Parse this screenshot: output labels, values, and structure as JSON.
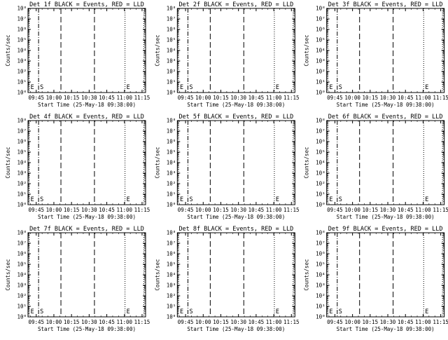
{
  "figure": {
    "background": "#ffffff",
    "foreground": "#000000"
  },
  "chart_data": [
    {
      "type": "line",
      "title": "Det 1f BLACK = Events, RED = LLD",
      "xlabel": "Start Time (25-May-18 09:38:00)",
      "ylabel": "Counts/sec",
      "y_scale": "log",
      "ylim": [
        1,
        100000000
      ],
      "yticks": [
        "10⁰",
        "10¹",
        "10²",
        "10³",
        "10⁴",
        "10⁵",
        "10⁶",
        "10⁷",
        "10⁸"
      ],
      "xticks": [
        "09:45",
        "10:00",
        "10:15",
        "10:30",
        "10:45",
        "11:00",
        "11:15"
      ],
      "xlim_minutes": [
        0,
        100
      ],
      "series": [],
      "annotations": [
        {
          "label": "E",
          "x_min": 1,
          "style": "dotted"
        },
        {
          "label": "S",
          "x_min": 9,
          "style": "dash-dot"
        },
        {
          "label": "",
          "x_min": 28,
          "style": "dashed"
        },
        {
          "label": "",
          "x_min": 56.5,
          "style": "dashed"
        },
        {
          "label": "E",
          "x_min": 82.5,
          "style": "dotted"
        },
        {
          "label": "",
          "x_min": 98.5,
          "style": "dotted"
        }
      ],
      "grid": false
    },
    {
      "type": "line",
      "title": "Det 2f BLACK = Events, RED = LLD",
      "xlabel": "Start Time (25-May-18 09:38:00)",
      "ylabel": "Counts/sec",
      "y_scale": "log",
      "ylim": [
        1,
        100000000
      ],
      "yticks": [
        "10⁰",
        "10¹",
        "10²",
        "10³",
        "10⁴",
        "10⁵",
        "10⁶",
        "10⁷",
        "10⁸"
      ],
      "xticks": [
        "09:45",
        "10:00",
        "10:15",
        "10:30",
        "10:45",
        "11:00",
        "11:15"
      ],
      "xlim_minutes": [
        0,
        100
      ],
      "series": [],
      "annotations": [
        {
          "label": "E",
          "x_min": 1,
          "style": "dotted"
        },
        {
          "label": "S",
          "x_min": 9,
          "style": "dash-dot"
        },
        {
          "label": "",
          "x_min": 28,
          "style": "dashed"
        },
        {
          "label": "",
          "x_min": 56.5,
          "style": "dashed"
        },
        {
          "label": "E",
          "x_min": 82.5,
          "style": "dotted"
        },
        {
          "label": "",
          "x_min": 98.5,
          "style": "dotted"
        }
      ],
      "grid": false
    },
    {
      "type": "line",
      "title": "Det 3f BLACK = Events, RED = LLD",
      "xlabel": "Start Time (25-May-18 09:38:00)",
      "ylabel": "Counts/sec",
      "y_scale": "log",
      "ylim": [
        1,
        100000000
      ],
      "yticks": [
        "10⁰",
        "10¹",
        "10²",
        "10³",
        "10⁴",
        "10⁵",
        "10⁶",
        "10⁷",
        "10⁸"
      ],
      "xticks": [
        "09:45",
        "10:00",
        "10:15",
        "10:30",
        "10:45",
        "11:00",
        "11:15"
      ],
      "xlim_minutes": [
        0,
        100
      ],
      "series": [],
      "annotations": [
        {
          "label": "E",
          "x_min": 1,
          "style": "dotted"
        },
        {
          "label": "S",
          "x_min": 9,
          "style": "dash-dot"
        },
        {
          "label": "",
          "x_min": 28,
          "style": "dashed"
        },
        {
          "label": "",
          "x_min": 56.5,
          "style": "dashed"
        },
        {
          "label": "E",
          "x_min": 82.5,
          "style": "dotted"
        },
        {
          "label": "",
          "x_min": 98.5,
          "style": "dotted"
        }
      ],
      "grid": false
    },
    {
      "type": "line",
      "title": "Det 4f BLACK = Events, RED = LLD",
      "xlabel": "Start Time (25-May-18 09:38:00)",
      "ylabel": "Counts/sec",
      "y_scale": "log",
      "ylim": [
        1,
        100000000
      ],
      "yticks": [
        "10⁰",
        "10¹",
        "10²",
        "10³",
        "10⁴",
        "10⁵",
        "10⁶",
        "10⁷",
        "10⁸"
      ],
      "xticks": [
        "09:45",
        "10:00",
        "10:15",
        "10:30",
        "10:45",
        "11:00",
        "11:15"
      ],
      "xlim_minutes": [
        0,
        100
      ],
      "series": [],
      "annotations": [
        {
          "label": "E",
          "x_min": 1,
          "style": "dotted"
        },
        {
          "label": "S",
          "x_min": 9,
          "style": "dash-dot"
        },
        {
          "label": "",
          "x_min": 28,
          "style": "dashed"
        },
        {
          "label": "",
          "x_min": 56.5,
          "style": "dashed"
        },
        {
          "label": "E",
          "x_min": 82.5,
          "style": "dotted"
        },
        {
          "label": "",
          "x_min": 98.5,
          "style": "dotted"
        }
      ],
      "grid": false
    },
    {
      "type": "line",
      "title": "Det 5f BLACK = Events, RED = LLD",
      "xlabel": "Start Time (25-May-18 09:38:00)",
      "ylabel": "Counts/sec",
      "y_scale": "log",
      "ylim": [
        1,
        100000000
      ],
      "yticks": [
        "10⁰",
        "10¹",
        "10²",
        "10³",
        "10⁴",
        "10⁵",
        "10⁶",
        "10⁷",
        "10⁸"
      ],
      "xticks": [
        "09:45",
        "10:00",
        "10:15",
        "10:30",
        "10:45",
        "11:00",
        "11:15"
      ],
      "xlim_minutes": [
        0,
        100
      ],
      "series": [],
      "annotations": [
        {
          "label": "E",
          "x_min": 1,
          "style": "dotted"
        },
        {
          "label": "S",
          "x_min": 9,
          "style": "dash-dot"
        },
        {
          "label": "",
          "x_min": 28,
          "style": "dashed"
        },
        {
          "label": "",
          "x_min": 56.5,
          "style": "dashed"
        },
        {
          "label": "E",
          "x_min": 82.5,
          "style": "dotted"
        },
        {
          "label": "",
          "x_min": 98.5,
          "style": "dotted"
        }
      ],
      "grid": false
    },
    {
      "type": "line",
      "title": "Det 6f BLACK = Events, RED = LLD",
      "xlabel": "Start Time (25-May-18 09:38:00)",
      "ylabel": "Counts/sec",
      "y_scale": "log",
      "ylim": [
        1,
        100000000
      ],
      "yticks": [
        "10⁰",
        "10¹",
        "10²",
        "10³",
        "10⁴",
        "10⁵",
        "10⁶",
        "10⁷",
        "10⁸"
      ],
      "xticks": [
        "09:45",
        "10:00",
        "10:15",
        "10:30",
        "10:45",
        "11:00",
        "11:15"
      ],
      "xlim_minutes": [
        0,
        100
      ],
      "series": [],
      "annotations": [
        {
          "label": "E",
          "x_min": 1,
          "style": "dotted"
        },
        {
          "label": "S",
          "x_min": 9,
          "style": "dash-dot"
        },
        {
          "label": "",
          "x_min": 28,
          "style": "dashed"
        },
        {
          "label": "",
          "x_min": 56.5,
          "style": "dashed"
        },
        {
          "label": "E",
          "x_min": 82.5,
          "style": "dotted"
        },
        {
          "label": "",
          "x_min": 98.5,
          "style": "dotted"
        }
      ],
      "grid": false
    },
    {
      "type": "line",
      "title": "Det 7f BLACK = Events, RED = LLD",
      "xlabel": "Start Time (25-May-18 09:38:00)",
      "ylabel": "Counts/sec",
      "y_scale": "log",
      "ylim": [
        1,
        100000000
      ],
      "yticks": [
        "10⁰",
        "10¹",
        "10²",
        "10³",
        "10⁴",
        "10⁵",
        "10⁶",
        "10⁷",
        "10⁸"
      ],
      "xticks": [
        "09:45",
        "10:00",
        "10:15",
        "10:30",
        "10:45",
        "11:00",
        "11:15"
      ],
      "xlim_minutes": [
        0,
        100
      ],
      "series": [],
      "annotations": [
        {
          "label": "E",
          "x_min": 1,
          "style": "dotted"
        },
        {
          "label": "S",
          "x_min": 9,
          "style": "dash-dot"
        },
        {
          "label": "",
          "x_min": 28,
          "style": "dashed"
        },
        {
          "label": "",
          "x_min": 56.5,
          "style": "dashed"
        },
        {
          "label": "E",
          "x_min": 82.5,
          "style": "dotted"
        },
        {
          "label": "",
          "x_min": 98.5,
          "style": "dotted"
        }
      ],
      "grid": false
    },
    {
      "type": "line",
      "title": "Det 8f BLACK = Events, RED = LLD",
      "xlabel": "Start Time (25-May-18 09:38:00)",
      "ylabel": "Counts/sec",
      "y_scale": "log",
      "ylim": [
        1,
        100000000
      ],
      "yticks": [
        "10⁰",
        "10¹",
        "10²",
        "10³",
        "10⁴",
        "10⁵",
        "10⁶",
        "10⁷",
        "10⁸"
      ],
      "xticks": [
        "09:45",
        "10:00",
        "10:15",
        "10:30",
        "10:45",
        "11:00",
        "11:15"
      ],
      "xlim_minutes": [
        0,
        100
      ],
      "series": [],
      "annotations": [
        {
          "label": "E",
          "x_min": 1,
          "style": "dotted"
        },
        {
          "label": "S",
          "x_min": 9,
          "style": "dash-dot"
        },
        {
          "label": "",
          "x_min": 28,
          "style": "dashed"
        },
        {
          "label": "",
          "x_min": 56.5,
          "style": "dashed"
        },
        {
          "label": "E",
          "x_min": 82.5,
          "style": "dotted"
        },
        {
          "label": "",
          "x_min": 98.5,
          "style": "dotted"
        }
      ],
      "grid": false
    },
    {
      "type": "line",
      "title": "Det 9f BLACK = Events, RED = LLD",
      "xlabel": "Start Time (25-May-18 09:38:00)",
      "ylabel": "Counts/sec",
      "y_scale": "log",
      "ylim": [
        1,
        100000000
      ],
      "yticks": [
        "10⁰",
        "10¹",
        "10²",
        "10³",
        "10⁴",
        "10⁵",
        "10⁶",
        "10⁷",
        "10⁸"
      ],
      "xticks": [
        "09:45",
        "10:00",
        "10:15",
        "10:30",
        "10:45",
        "11:00",
        "11:15"
      ],
      "xlim_minutes": [
        0,
        100
      ],
      "series": [],
      "annotations": [
        {
          "label": "E",
          "x_min": 1,
          "style": "dotted"
        },
        {
          "label": "S",
          "x_min": 9,
          "style": "dash-dot"
        },
        {
          "label": "",
          "x_min": 28,
          "style": "dashed"
        },
        {
          "label": "",
          "x_min": 56.5,
          "style": "dashed"
        },
        {
          "label": "E",
          "x_min": 82.5,
          "style": "dotted"
        },
        {
          "label": "",
          "x_min": 98.5,
          "style": "dotted"
        }
      ],
      "grid": false
    }
  ]
}
